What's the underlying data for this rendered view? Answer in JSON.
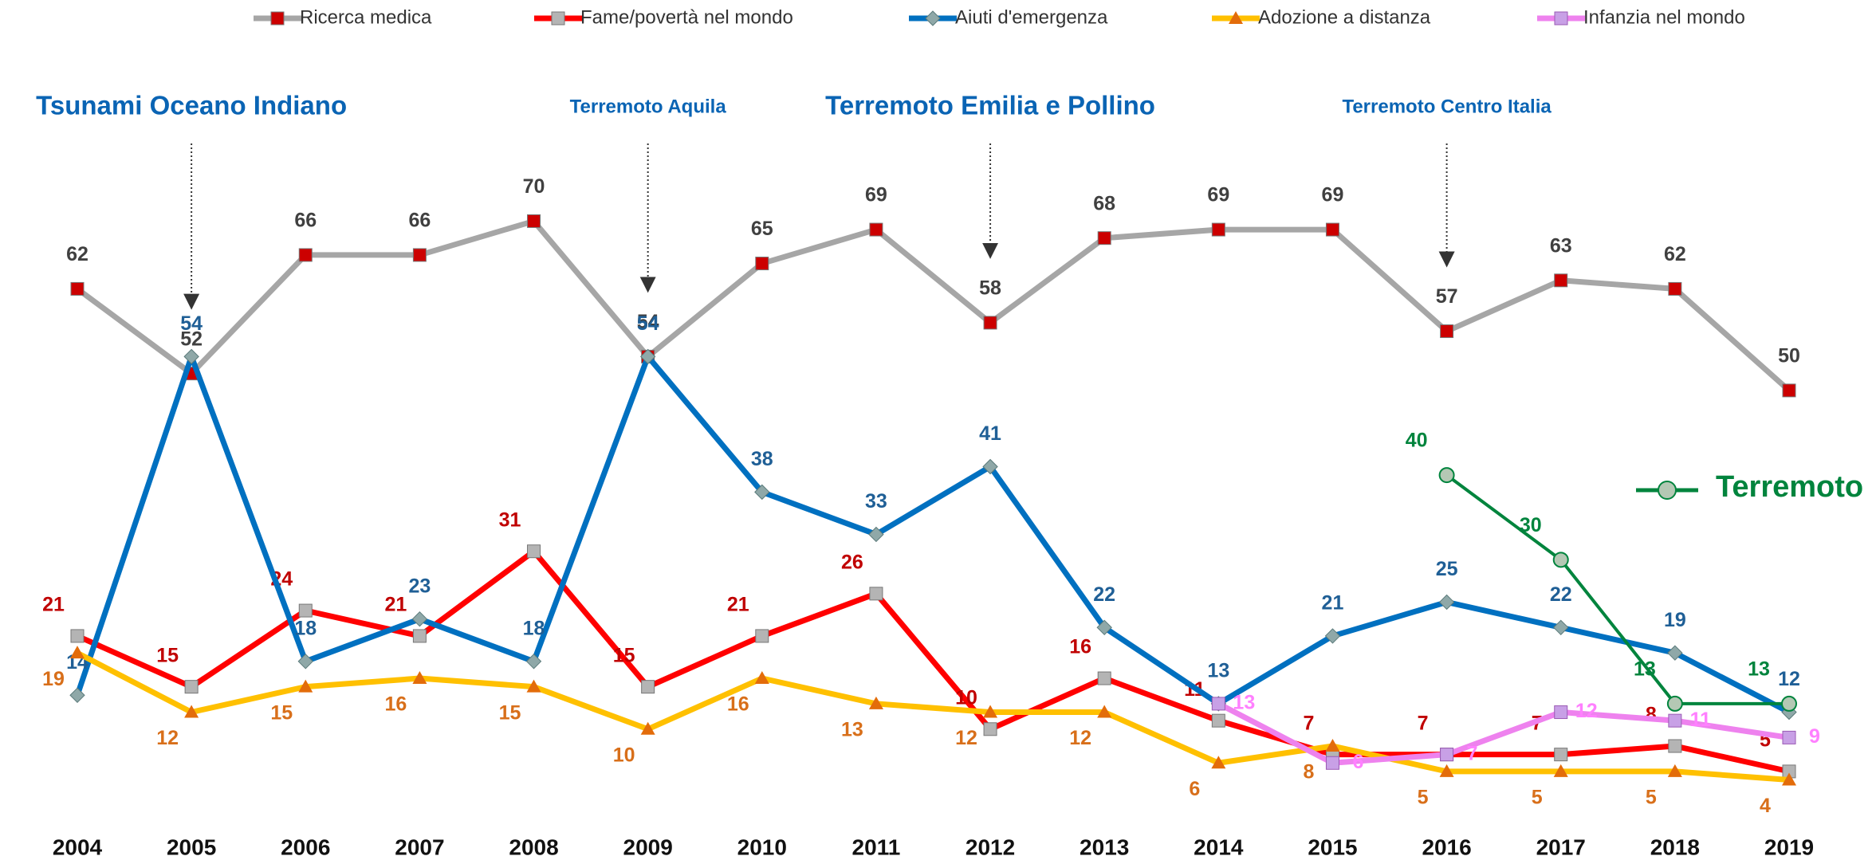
{
  "chart_data": {
    "type": "line",
    "x": [
      2004,
      2005,
      2006,
      2007,
      2008,
      2009,
      2010,
      2011,
      2012,
      2013,
      2014,
      2015,
      2016,
      2017,
      2018,
      2019
    ],
    "xlim": [
      2004,
      2019
    ],
    "ylim": [
      0,
      90
    ],
    "series": [
      {
        "name": "Ricerca medica",
        "color": "#a6a6a6",
        "marker_color": "#cc0000",
        "label_color": "#404040",
        "values": [
          62,
          52,
          66,
          66,
          70,
          54,
          65,
          69,
          58,
          68,
          69,
          69,
          57,
          63,
          62,
          50
        ]
      },
      {
        "name": "Fame/povertà nel mondo",
        "color": "#ff0000",
        "marker_color": "#b4b4b4",
        "label_color": "#c00000",
        "values": [
          21,
          15,
          24,
          21,
          31,
          15,
          21,
          26,
          10,
          16,
          11,
          7,
          7,
          7,
          8,
          5
        ]
      },
      {
        "name": "Aiuti d'emergenza",
        "color": "#0070c0",
        "marker_color": "#8fa8a8",
        "label_color": "#1f5f96",
        "values": [
          14,
          54,
          18,
          23,
          18,
          54,
          38,
          33,
          41,
          22,
          13,
          21,
          25,
          22,
          19,
          12
        ]
      },
      {
        "name": "Adozione a distanza",
        "color": "#ffc000",
        "marker_color": "#e36c0a",
        "label_color": "#d86f1a",
        "values": [
          19,
          12,
          15,
          16,
          15,
          10,
          16,
          13,
          12,
          12,
          6,
          8,
          5,
          5,
          5,
          4
        ]
      },
      {
        "name": "Infanzia nel mondo",
        "color": "#ee82ee",
        "marker_color": "#c8a0e6",
        "label_color": "#ff80ff",
        "values": [
          null,
          null,
          null,
          null,
          null,
          null,
          null,
          null,
          null,
          null,
          13,
          6,
          7,
          12,
          11,
          9
        ]
      },
      {
        "name": "Terremoto",
        "color": "#00843d",
        "marker_color": "#b4c8b4",
        "label_color": "#00843d",
        "values": [
          null,
          null,
          null,
          null,
          null,
          null,
          null,
          null,
          null,
          null,
          null,
          null,
          40,
          30,
          13,
          13
        ]
      }
    ],
    "annotations": [
      {
        "text": "Tsunami Oceano Indiano",
        "x": 2005
      },
      {
        "text": "Terremoto Aquila",
        "x": 2009
      },
      {
        "text": "Terremoto Emilia e Pollino",
        "x": 2012
      },
      {
        "text": "Terremoto Centro Italia",
        "x": 2016
      }
    ]
  }
}
